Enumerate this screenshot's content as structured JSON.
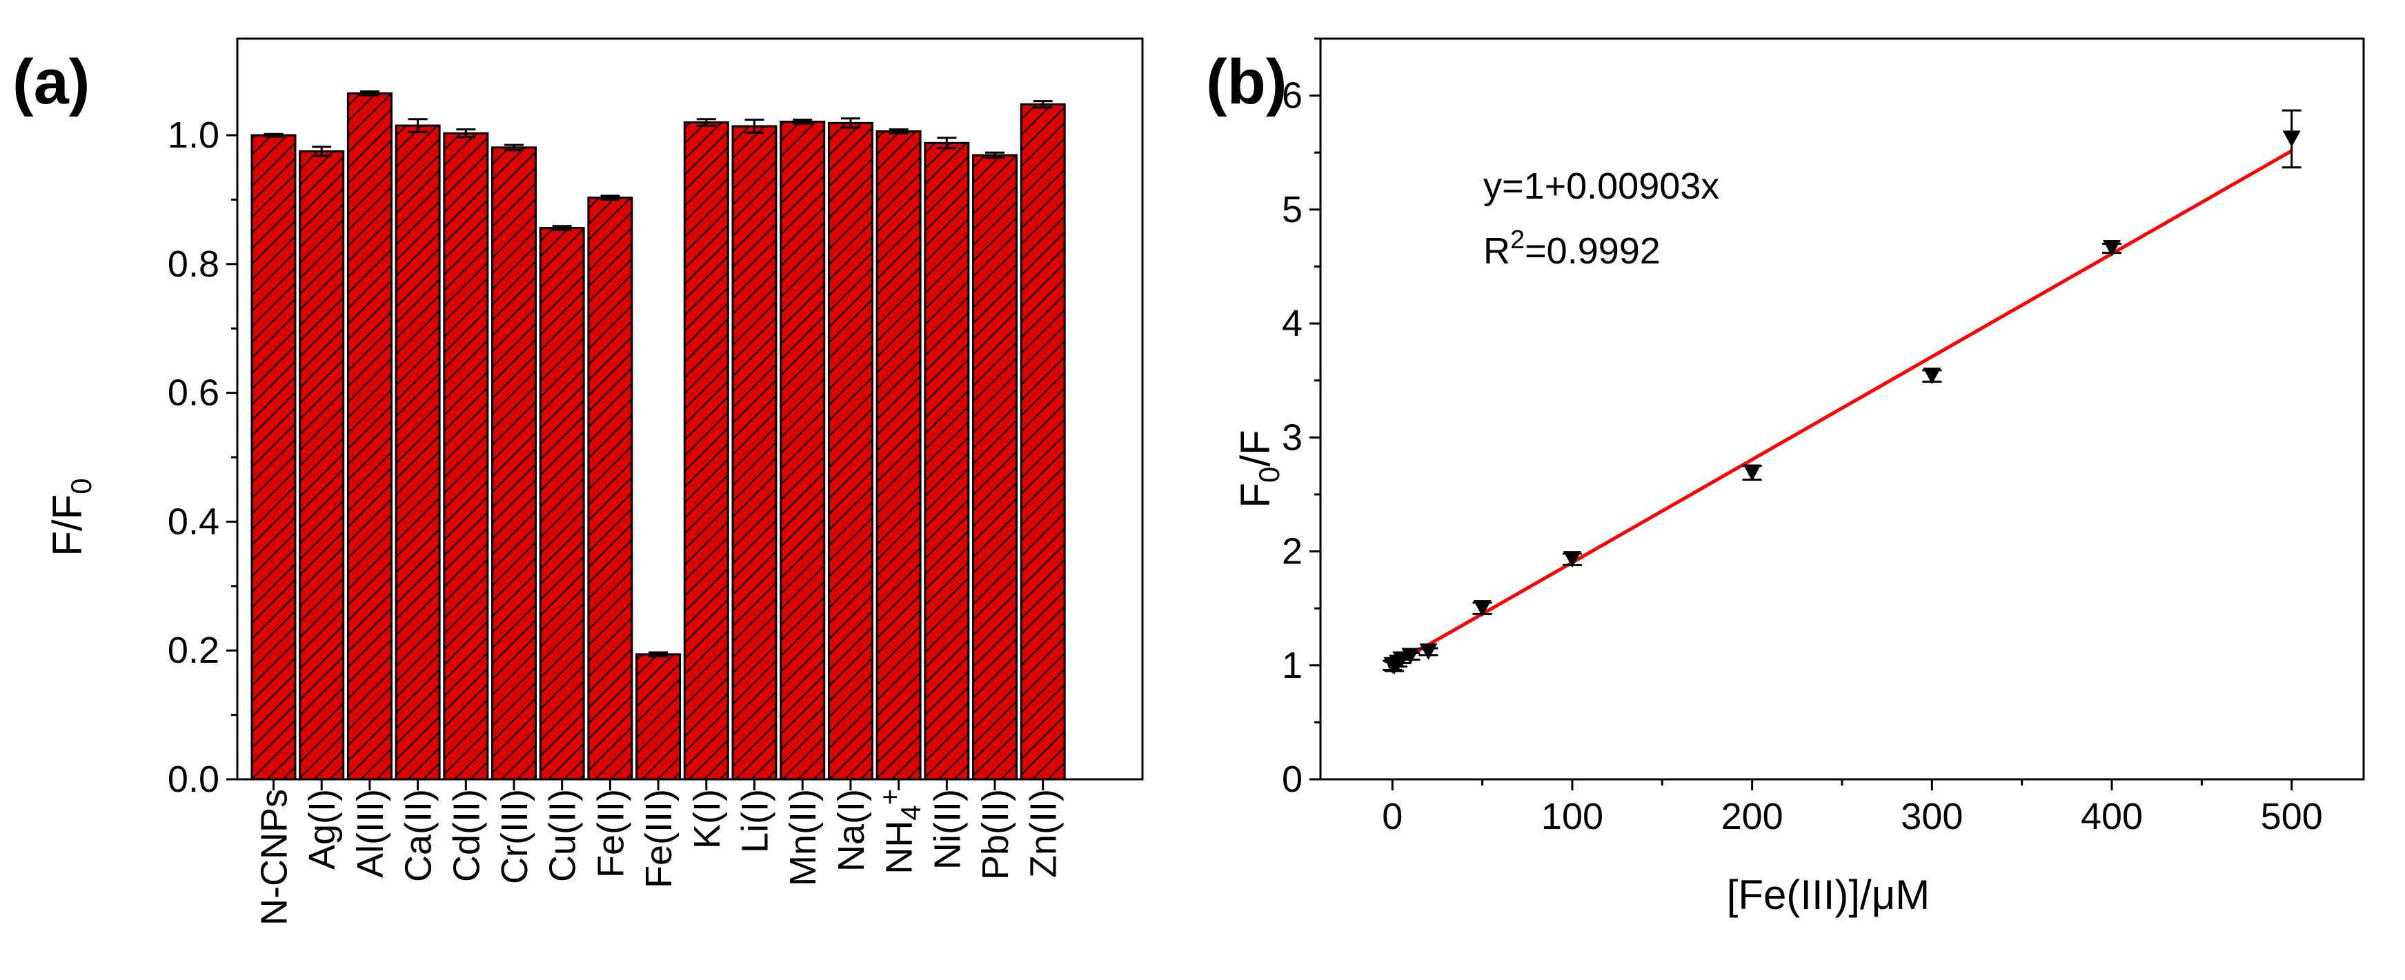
{
  "chart_data": [
    {
      "type": "bar",
      "panel_label": "(a)",
      "ylabel": "F/F",
      "ylabel_sub": "0",
      "xlabel": "",
      "ylim": [
        0,
        1.15
      ],
      "yticks": [
        "0.0",
        "0.2",
        "0.4",
        "0.6",
        "0.8",
        "1.0"
      ],
      "categories": [
        "N-CNPs",
        "Ag(I)",
        "Al(III)",
        "Ca(II)",
        "Cd(II)",
        "Cr(III)",
        "Cu(II)",
        "Fe(II)",
        "Fe(III)",
        "K(I)",
        "Li(I)",
        "Mn(II)",
        "Na(I)",
        "NH",
        "Ni(II)",
        "Pb(II)",
        "Zn(II)"
      ],
      "category_extra": {
        "NH": {
          "sub": "4",
          "sup": "+"
        }
      },
      "values": [
        1.0,
        0.975,
        1.065,
        1.015,
        1.003,
        0.981,
        0.856,
        0.903,
        0.194,
        1.02,
        1.014,
        1.021,
        1.019,
        1.006,
        0.988,
        0.969,
        1.048
      ],
      "errors": [
        0.002,
        0.007,
        0.003,
        0.01,
        0.006,
        0.004,
        0.003,
        0.003,
        0.003,
        0.005,
        0.01,
        0.003,
        0.007,
        0.003,
        0.008,
        0.004,
        0.005
      ],
      "bar_color": "#dd0000",
      "hatch_color": "#000000"
    },
    {
      "type": "scatter",
      "panel_label": "(b)",
      "ylabel": "F",
      "ylabel_sub": "0",
      "ylabel_tail": "/F",
      "xlabel": "[Fe(III)]/μM",
      "xlim": [
        -40,
        540
      ],
      "ylim": [
        0,
        6.5
      ],
      "xticks": [
        "0",
        "100",
        "200",
        "300",
        "400",
        "500"
      ],
      "yticks": [
        "0",
        "1",
        "2",
        "3",
        "4",
        "5",
        "6"
      ],
      "x": [
        0,
        1,
        3,
        5,
        10,
        20,
        50,
        100,
        200,
        300,
        400,
        500
      ],
      "y": [
        1.0,
        0.99,
        1.02,
        1.05,
        1.08,
        1.12,
        1.5,
        1.93,
        2.69,
        3.54,
        4.66,
        5.62
      ],
      "y_err": [
        0.04,
        0.04,
        0.03,
        0.03,
        0.03,
        0.03,
        0.05,
        0.05,
        0.06,
        0.05,
        0.04,
        0.25
      ],
      "fit": {
        "intercept": 1,
        "slope": 0.00903,
        "x_range": [
          0,
          500
        ],
        "color": "#ff0000"
      },
      "equation": "y=1+0.00903x",
      "r2_prefix": "R",
      "r2_sup": "2",
      "r2_value": "=0.9992"
    }
  ]
}
